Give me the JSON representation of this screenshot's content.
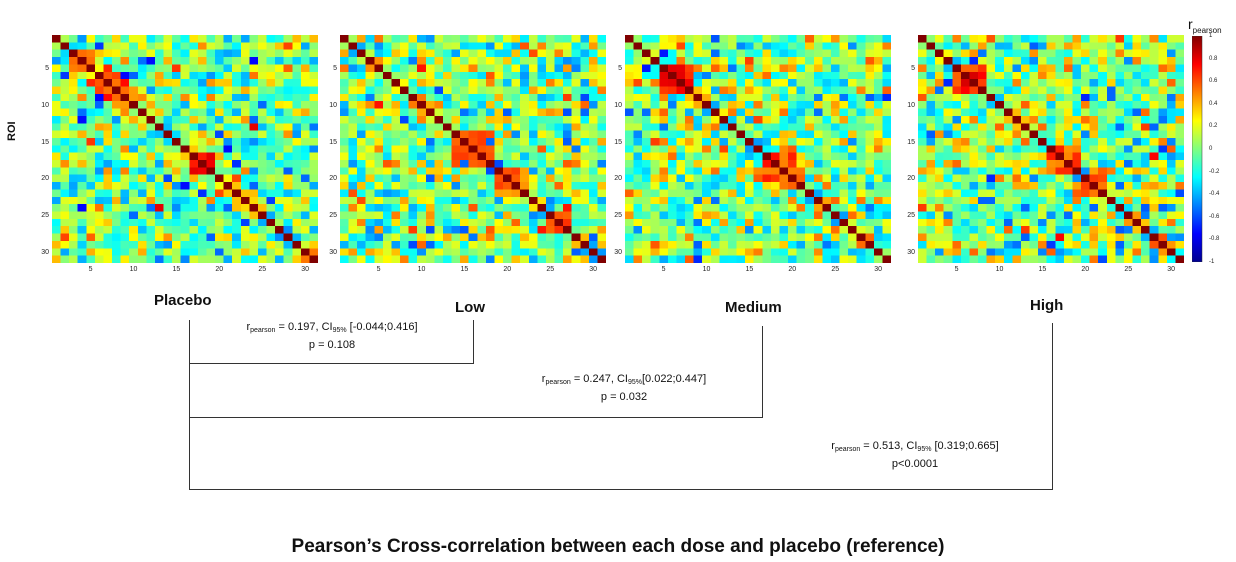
{
  "chart_data": {
    "type": "heatmap",
    "ylabel": "ROI",
    "axis_ticks": [
      "5",
      "10",
      "15",
      "20",
      "25",
      "30"
    ],
    "matrix_size": 31,
    "panels": [
      {
        "name": "Placebo",
        "hotspots": [
          [
            6,
            9,
            0.8
          ],
          [
            17,
            19,
            0.85
          ],
          [
            3,
            5,
            0.55
          ],
          [
            22,
            24,
            0.45
          ]
        ]
      },
      {
        "name": "Low",
        "hotspots": [
          [
            14,
            18,
            0.75
          ],
          [
            19,
            22,
            0.65
          ],
          [
            25,
            27,
            0.7
          ]
        ]
      },
      {
        "name": "Medium",
        "hotspots": [
          [
            5,
            8,
            0.9
          ],
          [
            17,
            20,
            0.75
          ],
          [
            19,
            21,
            0.6
          ]
        ]
      },
      {
        "name": "High",
        "hotspots": [
          [
            5,
            8,
            0.85
          ],
          [
            16,
            19,
            0.7
          ],
          [
            19,
            22,
            0.65
          ],
          [
            28,
            30,
            0.6
          ]
        ]
      }
    ],
    "colorbar": {
      "label_main": "r",
      "label_sub": "pearson",
      "range": [
        -1,
        1
      ],
      "ticks": [
        "1",
        "0.8",
        "0.6",
        "0.4",
        "0.2",
        "0",
        "-0.2",
        "-0.4",
        "-0.6",
        "-0.8",
        "-1"
      ]
    },
    "comparisons": [
      {
        "from": "Placebo",
        "to": "Low",
        "r_sym": "r",
        "r_sub": "pearson",
        "r_val": " = 0.197, ",
        "ci_sym": "CI",
        "ci_sub": "95%",
        "ci_val": " [-0.044;0.416]",
        "p": "p = 0.108"
      },
      {
        "from": "Placebo",
        "to": "Medium",
        "r_sym": "r",
        "r_sub": "pearson",
        "r_val": " = 0.247, ",
        "ci_sym": "CI",
        "ci_sub": "95%",
        "ci_val": "[0.022;0.447]",
        "p": "p = 0.032"
      },
      {
        "from": "Placebo",
        "to": "High",
        "r_sym": "r",
        "r_sub": "pearson",
        "r_val": " = 0.513, ",
        "ci_sym": "CI",
        "ci_sub": "95%",
        "ci_val": " [0.319;0.665]",
        "p": "p<0.0001"
      }
    ],
    "title": "Pearson’s Cross-correlation between each dose and placebo (reference)"
  },
  "colors": {
    "bracket": "#333333",
    "jet_dark_blue": "#00008f",
    "jet_cyan": "#00ffff",
    "jet_yellow": "#ffff00",
    "jet_dark_red": "#800000"
  }
}
